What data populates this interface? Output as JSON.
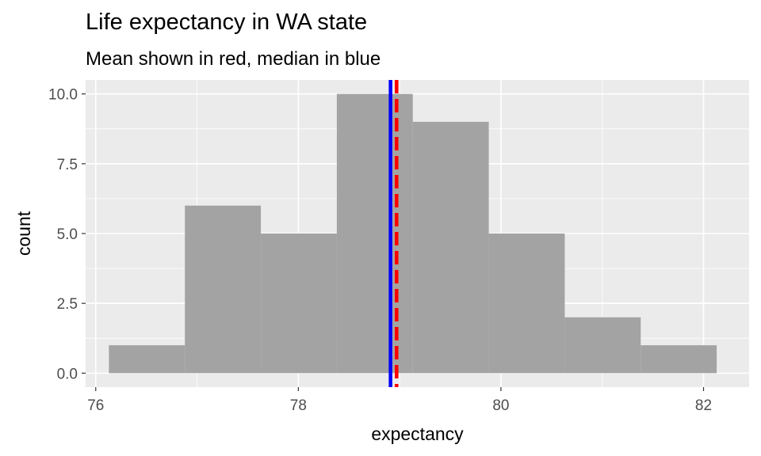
{
  "chart_data": {
    "type": "bar",
    "title": "Life expectancy in WA state",
    "subtitle": "Mean shown in red, median in blue",
    "xlabel": "expectancy",
    "ylabel": "count",
    "xlim": [
      75.9,
      82.45
    ],
    "ylim": [
      -0.5,
      10.5
    ],
    "x_ticks": [
      76,
      78,
      80,
      82
    ],
    "y_ticks": [
      0,
      2.5,
      5,
      7.5,
      10
    ],
    "y_tick_labels": [
      "0.0",
      "2.5",
      "5.0",
      "7.5",
      "10.0"
    ],
    "bins": [
      {
        "x0": 76.13,
        "x1": 76.88,
        "count": 1
      },
      {
        "x0": 76.88,
        "x1": 77.63,
        "count": 6
      },
      {
        "x0": 77.63,
        "x1": 78.38,
        "count": 5
      },
      {
        "x0": 78.38,
        "x1": 79.13,
        "count": 10
      },
      {
        "x0": 79.13,
        "x1": 79.88,
        "count": 9
      },
      {
        "x0": 79.88,
        "x1": 80.63,
        "count": 5
      },
      {
        "x0": 80.63,
        "x1": 81.38,
        "count": 2
      },
      {
        "x0": 81.38,
        "x1": 82.13,
        "count": 1
      }
    ],
    "mean": 78.97,
    "median": 78.91,
    "colors": {
      "bar": "#a3a3a3",
      "mean_line": "#ff0000",
      "median_line": "#0000ff",
      "panel": "#ebebeb",
      "grid": "#ffffff"
    },
    "grid": true,
    "legend": "none"
  }
}
